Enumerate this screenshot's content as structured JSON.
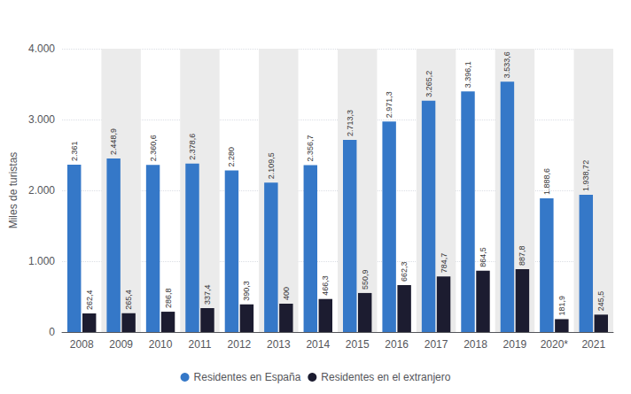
{
  "chart_data": {
    "type": "bar",
    "categories": [
      "2008",
      "2009",
      "2010",
      "2011",
      "2012",
      "2013",
      "2014",
      "2015",
      "2016",
      "2017",
      "2018",
      "2019",
      "2020*",
      "2021"
    ],
    "series": [
      {
        "name": "Residentes en España",
        "color": "#3578C8",
        "values": [
          2361.0,
          2448.9,
          2360.6,
          2378.6,
          2280.0,
          2109.5,
          2356.7,
          2713.3,
          2971.3,
          3265.2,
          3396.1,
          3533.6,
          1888.6,
          1938.72
        ],
        "value_labels": [
          "2.361",
          "2.448,9",
          "2.360,6",
          "2.378,6",
          "2.280",
          "2.109,5",
          "2.356,7",
          "2.713,3",
          "2.971,3",
          "3.265,2",
          "3.396,1",
          "3.533,6",
          "1.888,6",
          "1.938,72"
        ]
      },
      {
        "name": "Residentes en el extranjero",
        "color": "#1c1c30",
        "values": [
          262.4,
          265.4,
          286.8,
          337.4,
          390.3,
          400.0,
          466.3,
          550.9,
          662.3,
          784.7,
          864.5,
          887.8,
          181.9,
          245.5
        ],
        "value_labels": [
          "262,4",
          "265,4",
          "286,8",
          "337,4",
          "390,3",
          "400",
          "466,3",
          "550,9",
          "662,3",
          "784,7",
          "864,5",
          "887,8",
          "181,9",
          "245,5"
        ]
      }
    ],
    "ylabel": "Miles de turistas",
    "ylim": [
      0,
      4000
    ],
    "yticks": [
      0,
      {
        "value": 1000,
        "label": "1.000"
      },
      {
        "value": 2000,
        "label": "2.000"
      },
      {
        "value": 3000,
        "label": "3.000"
      },
      {
        "value": 4000,
        "label": "4.000"
      }
    ],
    "grid": true,
    "legend": "bottom",
    "data_labels": true
  }
}
